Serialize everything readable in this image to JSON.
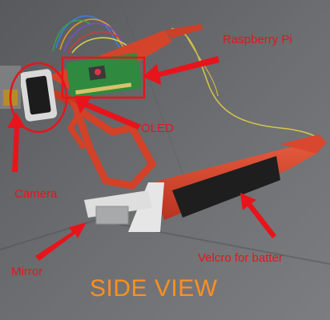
{
  "annotations": {
    "raspberry_pi": "Raspberry Pi",
    "oled": "OLED",
    "camera": "Camera",
    "mirror": "Mirror",
    "velcro": "Velcro for batter"
  },
  "caption": "SIDE VIEW",
  "colors": {
    "annotation_red": "#e8141b",
    "caption_orange": "#ff8f1f",
    "frame_red": "#d8432c",
    "background": "#6a6b6e"
  }
}
